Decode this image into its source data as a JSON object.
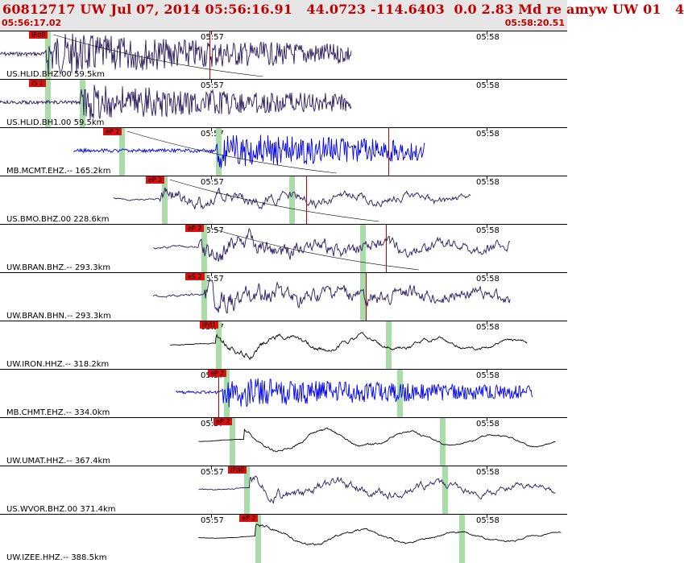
{
  "header": {
    "title": "60812717 UW Jul 07, 2014 05:56:16.91   44.0723 -114.6403  0.0 2.83 Md re amyw UW 01   4",
    "start_time": "05:56:17.02",
    "end_time": "05:58:20.51"
  },
  "time_ticks": [
    "05:57",
    "05:58"
  ],
  "colors": {
    "title": "#c00000",
    "pick": "#dd1010",
    "band": "#a9dca9",
    "header_bg": "#e6e6e6"
  },
  "traces": [
    {
      "station": "US.HLID.BHZ.00 59.5km",
      "pick": "iPd0",
      "color": "#2a1a5e",
      "start": 0.0,
      "end": 0.62,
      "amp": 0.85,
      "smooth": 0.15,
      "onset": 0.08,
      "band": 0.08,
      "band2": null,
      "marker": 0.37,
      "marker2": null,
      "curve": true
    },
    {
      "station": "US.HLID.BH1.00 59.5km",
      "pick": "iS 1",
      "color": "#2a1a5e",
      "start": 0.0,
      "end": 0.62,
      "amp": 0.7,
      "smooth": 0.15,
      "onset": 0.14,
      "band": 0.08,
      "band2": 0.14,
      "marker": null,
      "marker2": null,
      "curve": false
    },
    {
      "station": "MB.MCMT.EHZ.-- 165.2km",
      "pick": "eP 2",
      "color": "#0000ee",
      "start": 0.13,
      "end": 0.75,
      "amp": 0.7,
      "smooth": 0.05,
      "onset": 0.38,
      "band": 0.21,
      "band2": 0.38,
      "marker": 0.685,
      "marker2": null,
      "curve": true
    },
    {
      "station": "US.BMO.BHZ.00 228.6km",
      "pick": "eP 2",
      "color": "#2a1a5e",
      "start": 0.2,
      "end": 0.83,
      "amp": 0.45,
      "smooth": 0.7,
      "onset": 0.28,
      "band": 0.285,
      "band2": 0.51,
      "marker": 0.54,
      "marker2": null,
      "curve": true
    },
    {
      "station": "UW.BRAN.BHZ.-- 293.3km",
      "pick": "eP 2",
      "color": "#2a1a5e",
      "start": 0.27,
      "end": 0.9,
      "amp": 0.65,
      "smooth": 0.7,
      "onset": 0.35,
      "band": 0.355,
      "band2": 0.635,
      "marker": 0.68,
      "marker2": null,
      "curve": true
    },
    {
      "station": "UW.BRAN.BHN.-- 293.3km",
      "pick": "eS 2",
      "color": "#2a1a5e",
      "start": 0.27,
      "end": 0.9,
      "amp": 0.55,
      "smooth": 0.6,
      "onset": 0.36,
      "band": 0.355,
      "band2": 0.635,
      "marker": 0.645,
      "marker2": null,
      "curve": false
    },
    {
      "station": "UW.IRON.HHZ.-- 318.2km",
      "pick": "iPd1",
      "color": "#000000",
      "start": 0.3,
      "end": 0.93,
      "amp": 0.6,
      "smooth": 0.9,
      "onset": 0.38,
      "band": 0.38,
      "band2": 0.68,
      "marker": null,
      "marker2": null,
      "curve": false
    },
    {
      "station": "MB.CHMT.EHZ.-- 334.0km",
      "pick": "eP 2",
      "color": "#0000ee",
      "start": 0.31,
      "end": 0.94,
      "amp": 0.6,
      "smooth": 0.05,
      "onset": 0.39,
      "band": 0.395,
      "band2": 0.7,
      "marker": 0.385,
      "marker2": null,
      "curve": false
    },
    {
      "station": "UW.UMAT.HHZ.-- 367.4km",
      "pick": "eP 2",
      "color": "#000000",
      "start": 0.35,
      "end": 0.98,
      "amp": 0.6,
      "smooth": 0.95,
      "onset": 0.43,
      "band": 0.405,
      "band2": 0.775,
      "marker": null,
      "marker2": null,
      "curve": false
    },
    {
      "station": "US.WVOR.BHZ.00 371.4km",
      "pick": "iPd0",
      "color": "#2a1a5e",
      "start": 0.35,
      "end": 0.98,
      "amp": 0.55,
      "smooth": 0.8,
      "onset": 0.44,
      "band": 0.43,
      "band2": 0.78,
      "marker": null,
      "marker2": null,
      "curve": false
    },
    {
      "station": "UW.IZEE.HHZ.-- 388.5km",
      "pick": "eP 2",
      "color": "#000000",
      "start": 0.35,
      "end": 0.99,
      "amp": 0.6,
      "smooth": 0.95,
      "onset": 0.45,
      "band": 0.45,
      "band2": 0.81,
      "marker": null,
      "marker2": null,
      "curve": false
    }
  ]
}
